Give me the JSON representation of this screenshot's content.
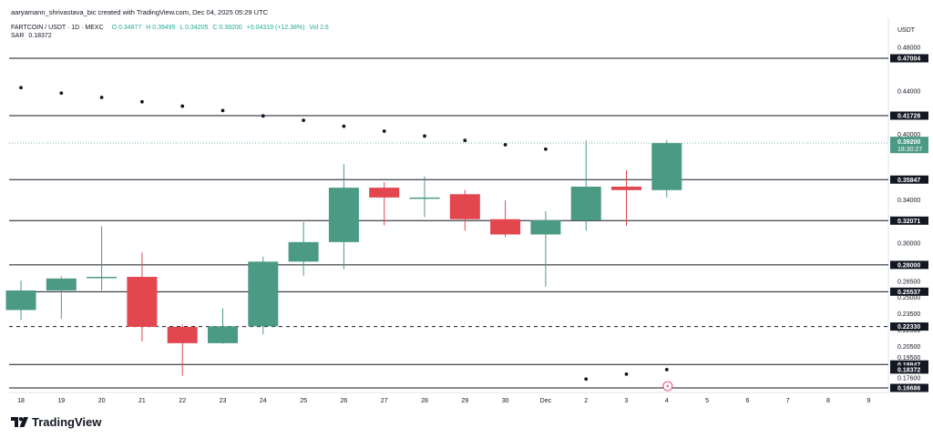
{
  "header": {
    "attribution": "aaryamann_shrivastava_bic created with TradingView.com, Dec 04, 2025 05:29 UTC",
    "symbol": "FARTCOIN / USDT · 1D · MEXC",
    "ohlc": {
      "o": "O 0.34877",
      "h": "H 0.39495",
      "l": "L 0.34205",
      "c": "C 0.39200",
      "chg": "+0.04319 (+12.38%)"
    },
    "vol": "Vol 2.6",
    "indicator": {
      "name": "SAR",
      "value": "0.18372"
    }
  },
  "brand": {
    "name": "TradingView"
  },
  "colors": {
    "up": "#4a9a84",
    "down": "#e2464f",
    "sar": "#131722",
    "level": "#131722",
    "last_price": "#4a9a84"
  },
  "chart_data": {
    "type": "candlestick",
    "currency": "USDT",
    "x_ticks": [
      "18",
      "19",
      "20",
      "21",
      "22",
      "23",
      "24",
      "25",
      "26",
      "27",
      "28",
      "29",
      "30",
      "Dec",
      "2",
      "3",
      "4",
      "5",
      "6",
      "7",
      "8",
      "9"
    ],
    "y_ticks": [
      "0.48000",
      "0.44000",
      "0.40000",
      "0.34000",
      "0.30000",
      "0.26500",
      "0.25000",
      "0.23500",
      "0.22000",
      "0.20500",
      "0.19500",
      "0.17600"
    ],
    "ylim": [
      0.162,
      0.497
    ],
    "candles": [
      {
        "x": "18",
        "o": 0.2385,
        "h": 0.2655,
        "l": 0.2295,
        "c": 0.2565
      },
      {
        "x": "19",
        "o": 0.2565,
        "h": 0.2695,
        "l": 0.2305,
        "c": 0.2675
      },
      {
        "x": "20",
        "o": 0.268,
        "h": 0.3155,
        "l": 0.2565,
        "c": 0.269
      },
      {
        "x": "21",
        "o": 0.269,
        "h": 0.2915,
        "l": 0.2095,
        "c": 0.223
      },
      {
        "x": "22",
        "o": 0.223,
        "h": 0.225,
        "l": 0.178,
        "c": 0.208
      },
      {
        "x": "23",
        "o": 0.208,
        "h": 0.24,
        "l": 0.2075,
        "c": 0.2235
      },
      {
        "x": "24",
        "o": 0.2235,
        "h": 0.2875,
        "l": 0.216,
        "c": 0.283
      },
      {
        "x": "25",
        "o": 0.283,
        "h": 0.3195,
        "l": 0.27,
        "c": 0.301
      },
      {
        "x": "26",
        "o": 0.301,
        "h": 0.3725,
        "l": 0.276,
        "c": 0.351
      },
      {
        "x": "27",
        "o": 0.351,
        "h": 0.356,
        "l": 0.3165,
        "c": 0.342
      },
      {
        "x": "28",
        "o": 0.342,
        "h": 0.3615,
        "l": 0.324,
        "c": 0.342
      },
      {
        "x": "29",
        "o": 0.345,
        "h": 0.349,
        "l": 0.3115,
        "c": 0.322
      },
      {
        "x": "30",
        "o": 0.322,
        "h": 0.3395,
        "l": 0.3055,
        "c": 0.308
      },
      {
        "x": "Dec",
        "o": 0.308,
        "h": 0.3295,
        "l": 0.26,
        "c": 0.321
      },
      {
        "x": "2",
        "o": 0.321,
        "h": 0.3945,
        "l": 0.3115,
        "c": 0.352
      },
      {
        "x": "3",
        "o": 0.352,
        "h": 0.367,
        "l": 0.316,
        "c": 0.3488
      },
      {
        "x": "4",
        "o": 0.3488,
        "h": 0.395,
        "l": 0.3421,
        "c": 0.392
      }
    ],
    "sar": [
      {
        "x": "18",
        "y": 0.443
      },
      {
        "x": "19",
        "y": 0.438
      },
      {
        "x": "20",
        "y": 0.434
      },
      {
        "x": "21",
        "y": 0.43
      },
      {
        "x": "22",
        "y": 0.426
      },
      {
        "x": "23",
        "y": 0.422
      },
      {
        "x": "24",
        "y": 0.417
      },
      {
        "x": "25",
        "y": 0.413
      },
      {
        "x": "26",
        "y": 0.4075
      },
      {
        "x": "27",
        "y": 0.403
      },
      {
        "x": "28",
        "y": 0.3985
      },
      {
        "x": "29",
        "y": 0.3945
      },
      {
        "x": "30",
        "y": 0.3905
      },
      {
        "x": "Dec",
        "y": 0.3865
      },
      {
        "x": "2",
        "y": 0.175
      },
      {
        "x": "3",
        "y": 0.1795
      },
      {
        "x": "4",
        "y": 0.18372
      }
    ],
    "levels": [
      {
        "value": 0.47004,
        "label": "0.47004",
        "style": "solid"
      },
      {
        "value": 0.41728,
        "label": "0.41728",
        "style": "solid"
      },
      {
        "value": 0.35847,
        "label": "0.35847",
        "style": "solid"
      },
      {
        "value": 0.32071,
        "label": "0.32071",
        "style": "solid"
      },
      {
        "value": 0.28,
        "label": "0.28000",
        "style": "solid"
      },
      {
        "value": 0.25537,
        "label": "0.25537",
        "style": "solid"
      },
      {
        "value": 0.2233,
        "label": "0.22330",
        "style": "dashed"
      },
      {
        "value": 0.18847,
        "label": "0.18847",
        "style": "solid"
      },
      {
        "value": 0.16686,
        "label": "0.16686",
        "style": "solid"
      }
    ],
    "sar_label": "0.18372",
    "last_price": {
      "value": 0.392,
      "label": "0.39200",
      "countdown": "18:30:27"
    },
    "grid": false,
    "legend": "top-left"
  }
}
